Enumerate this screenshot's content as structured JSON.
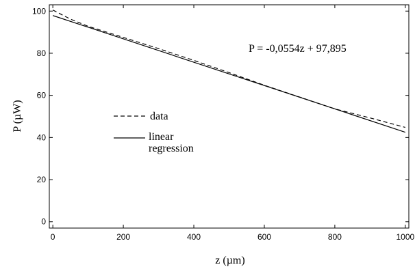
{
  "chart_data": {
    "type": "line",
    "xlabel": "z (µm)",
    "ylabel": "P (µW)",
    "xlim": [
      -10,
      1010
    ],
    "ylim": [
      -3,
      103
    ],
    "x_ticks": [
      0,
      200,
      400,
      600,
      800,
      1000
    ],
    "y_ticks": [
      0,
      20,
      40,
      60,
      80,
      100
    ],
    "x_tick_labels": [
      "0",
      "200",
      "400",
      "600",
      "800",
      "1000"
    ],
    "y_tick_labels": [
      "0",
      "20",
      "40",
      "60",
      "80",
      "100"
    ],
    "grid": false,
    "legend_position": "center-left",
    "annotation": "P = -0,0554z + 97,895",
    "series": [
      {
        "name": "data",
        "style": "dashed",
        "color": "#000000",
        "x": [
          0,
          50,
          100,
          200,
          300,
          400,
          500,
          600,
          700,
          800,
          900,
          1000
        ],
        "y": [
          100.5,
          96.2,
          92.8,
          87.5,
          82.2,
          76.6,
          70.8,
          64.8,
          59.2,
          53.6,
          49.3,
          44.8
        ]
      },
      {
        "name": "linear",
        "name_line2": "regression",
        "style": "solid",
        "color": "#000000",
        "x": [
          0,
          1000
        ],
        "y": [
          97.895,
          42.495
        ]
      }
    ]
  }
}
